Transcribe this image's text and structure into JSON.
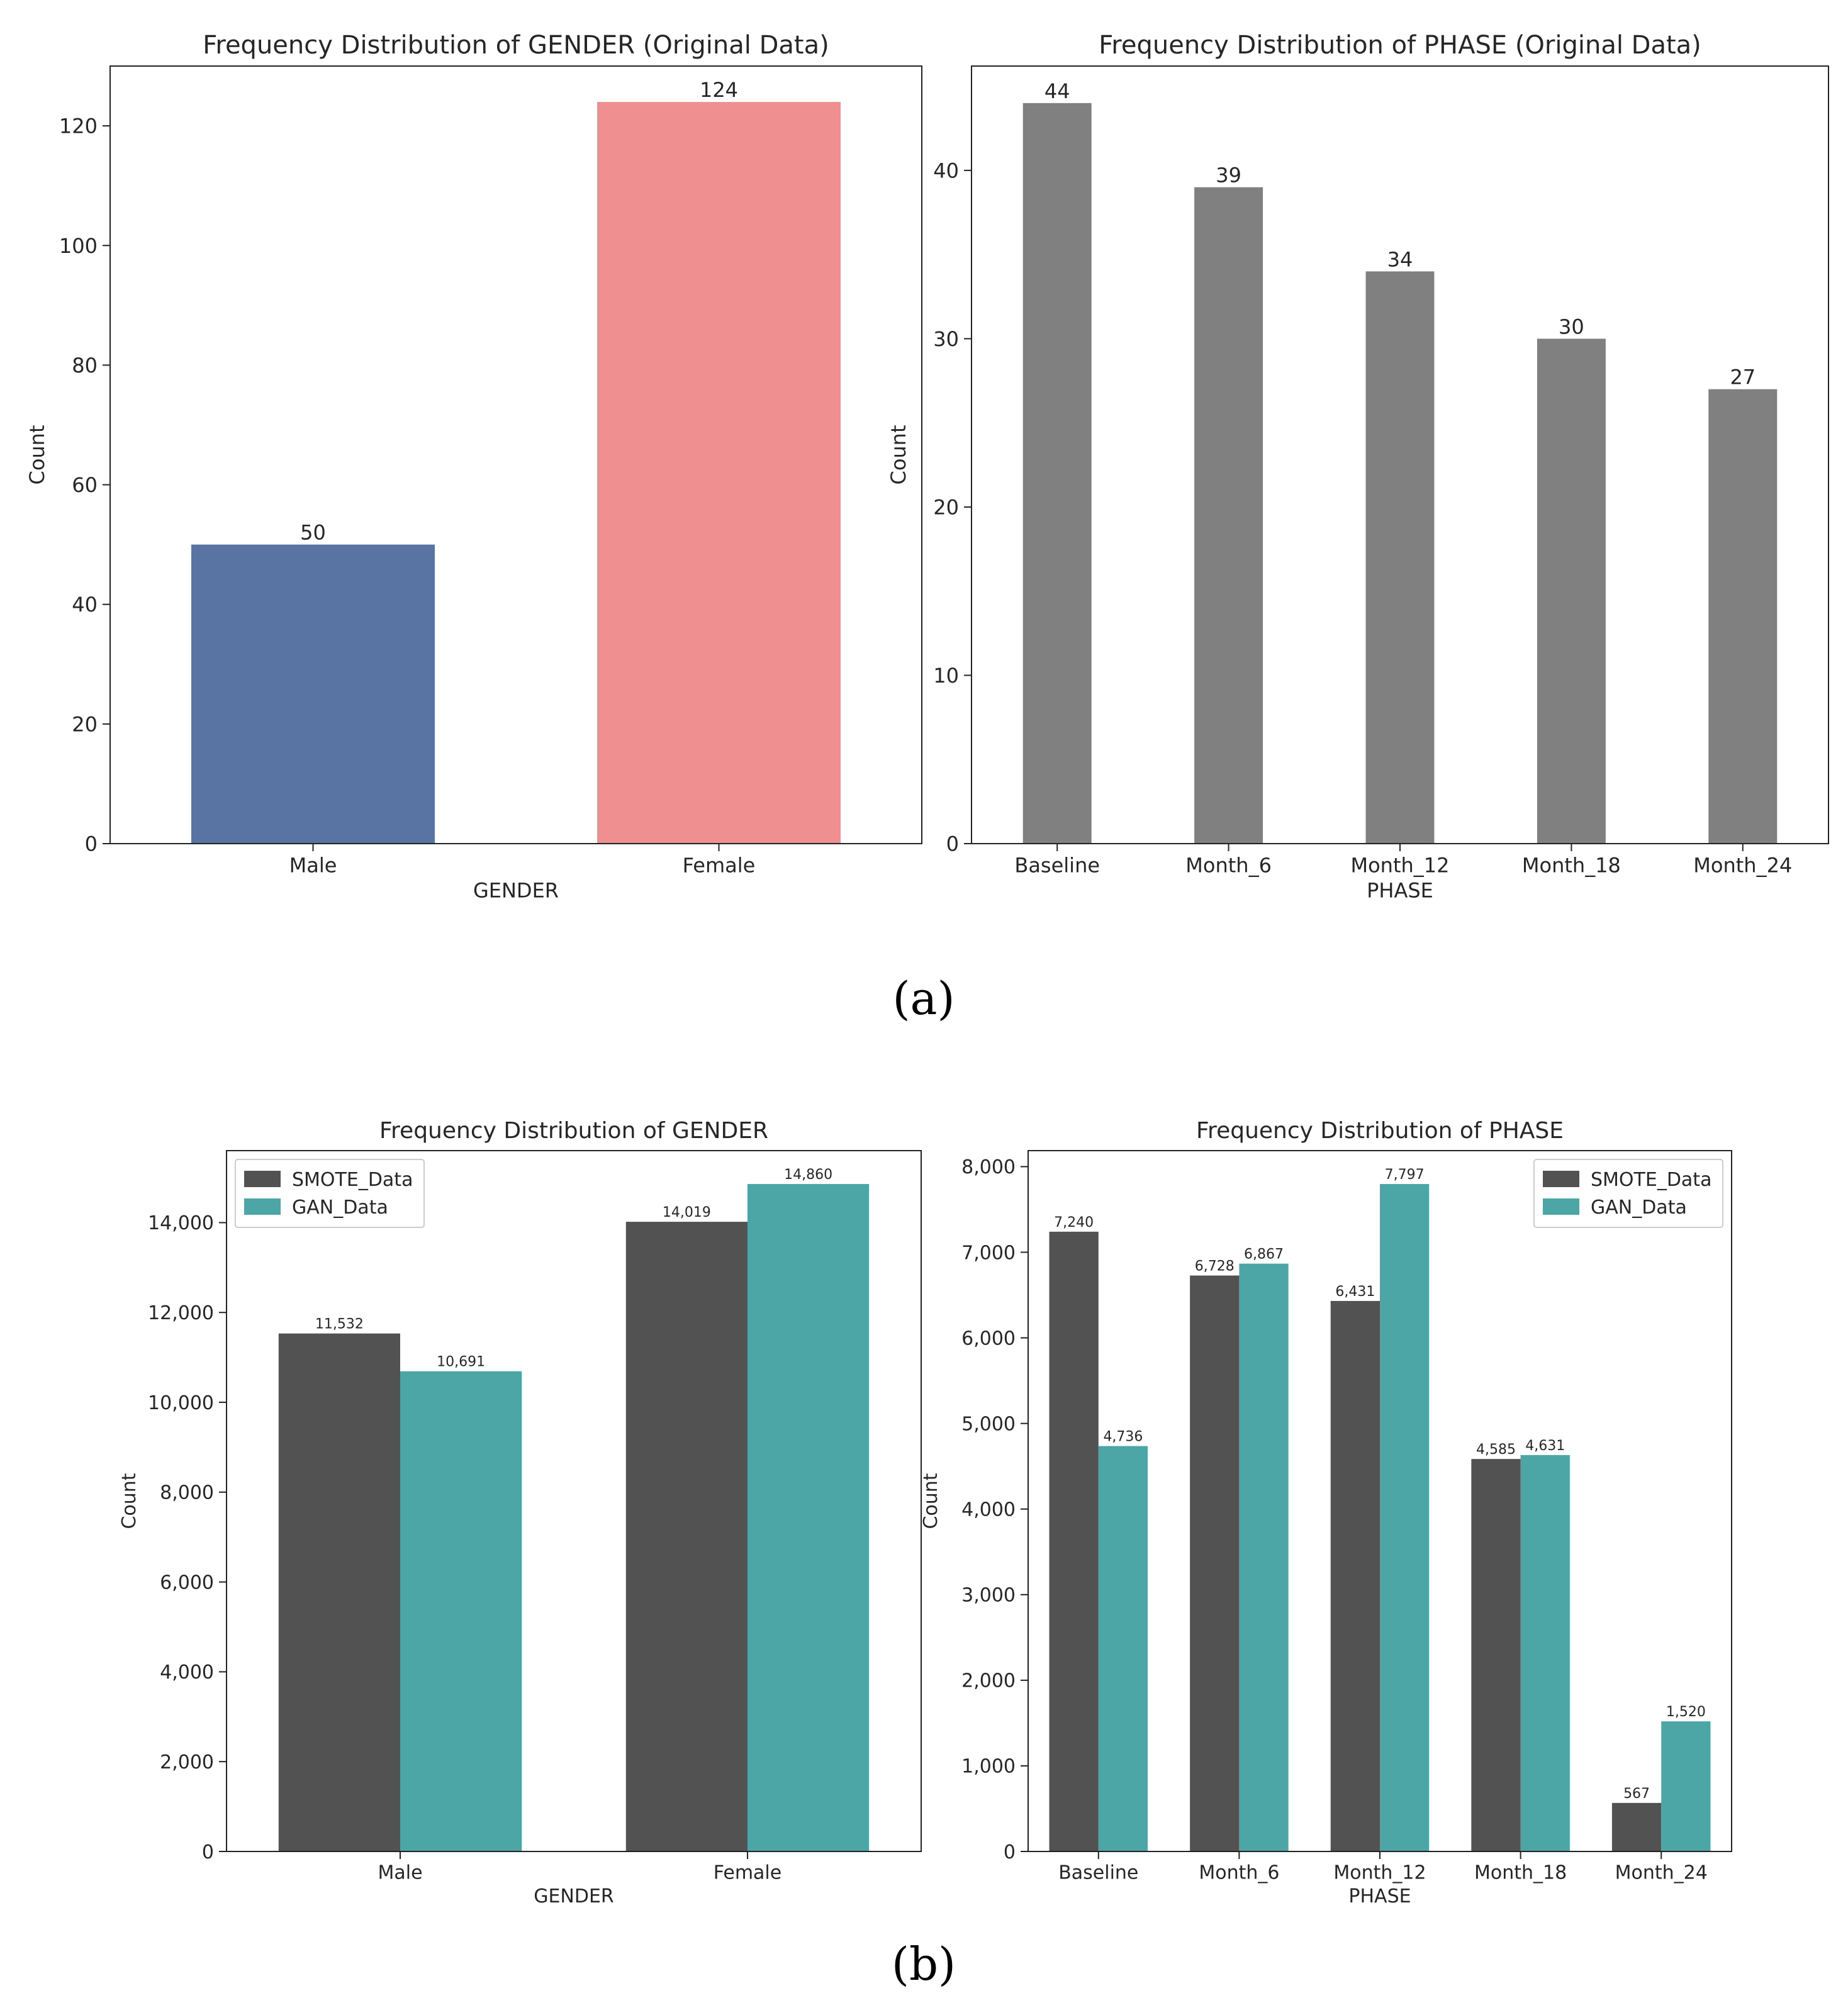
{
  "captions": [
    "(a)",
    "(b)"
  ],
  "chart_data": [
    {
      "type": "bar",
      "title": "Frequency Distribution of GENDER (Original Data)",
      "xlabel": "GENDER",
      "ylabel": "Count",
      "categories": [
        "Male",
        "Female"
      ],
      "values": [
        50,
        124
      ],
      "bar_colors": [
        "#5973a3",
        "#ef8f8f"
      ],
      "ylim": [
        0,
        130
      ],
      "yticks": [
        0,
        20,
        40,
        60,
        80,
        100,
        120
      ],
      "ytick_labels": [
        "0",
        "20",
        "40",
        "60",
        "80",
        "100",
        "120"
      ],
      "data_labels": [
        "50",
        "124"
      ],
      "grid": false
    },
    {
      "type": "bar",
      "title": "Frequency Distribution of PHASE (Original Data)",
      "xlabel": "PHASE",
      "ylabel": "Count",
      "categories": [
        "Baseline",
        "Month_6",
        "Month_12",
        "Month_18",
        "Month_24"
      ],
      "values": [
        44,
        39,
        34,
        30,
        27
      ],
      "bar_colors": [
        "#808080",
        "#808080",
        "#808080",
        "#808080",
        "#808080"
      ],
      "ylim": [
        0,
        46.2
      ],
      "yticks": [
        0,
        10,
        20,
        30,
        40
      ],
      "ytick_labels": [
        "0",
        "10",
        "20",
        "30",
        "40"
      ],
      "data_labels": [
        "44",
        "39",
        "34",
        "30",
        "27"
      ],
      "grid": false
    },
    {
      "type": "bar",
      "title": "Frequency Distribution of GENDER",
      "xlabel": "GENDER",
      "ylabel": "Count",
      "categories": [
        "Male",
        "Female"
      ],
      "series": [
        {
          "name": "SMOTE_Data",
          "color": "#525252",
          "values": [
            11532,
            14019
          ],
          "labels": [
            "11,532",
            "14,019"
          ]
        },
        {
          "name": "GAN_Data",
          "color": "#4ca6a6",
          "values": [
            10691,
            14860
          ],
          "labels": [
            "10,691",
            "14,860"
          ]
        }
      ],
      "ylim": [
        0,
        15603
      ],
      "yticks": [
        0,
        2000,
        4000,
        6000,
        8000,
        10000,
        12000,
        14000
      ],
      "ytick_labels": [
        "0",
        "2,000",
        "4,000",
        "6,000",
        "8,000",
        "10,000",
        "12,000",
        "14,000"
      ],
      "legend": "top-left",
      "grid": false
    },
    {
      "type": "bar",
      "title": "Frequency Distribution of PHASE",
      "xlabel": "PHASE",
      "ylabel": "Count",
      "categories": [
        "Baseline",
        "Month_6",
        "Month_12",
        "Month_18",
        "Month_24"
      ],
      "series": [
        {
          "name": "SMOTE_Data",
          "color": "#525252",
          "values": [
            7240,
            6728,
            6431,
            4585,
            567
          ],
          "labels": [
            "7,240",
            "6,728",
            "6,431",
            "4,585",
            "567"
          ]
        },
        {
          "name": "GAN_Data",
          "color": "#4ca6a6",
          "values": [
            4736,
            6867,
            7797,
            4631,
            1520
          ],
          "labels": [
            "4,736",
            "6,867",
            "7,797",
            "4,631",
            "1,520"
          ]
        }
      ],
      "ylim": [
        0,
        8187
      ],
      "yticks": [
        0,
        1000,
        2000,
        3000,
        4000,
        5000,
        6000,
        7000,
        8000
      ],
      "ytick_labels": [
        "0",
        "1,000",
        "2,000",
        "3,000",
        "4,000",
        "5,000",
        "6,000",
        "7,000",
        "8,000"
      ],
      "legend": "top-right",
      "grid": false
    }
  ]
}
